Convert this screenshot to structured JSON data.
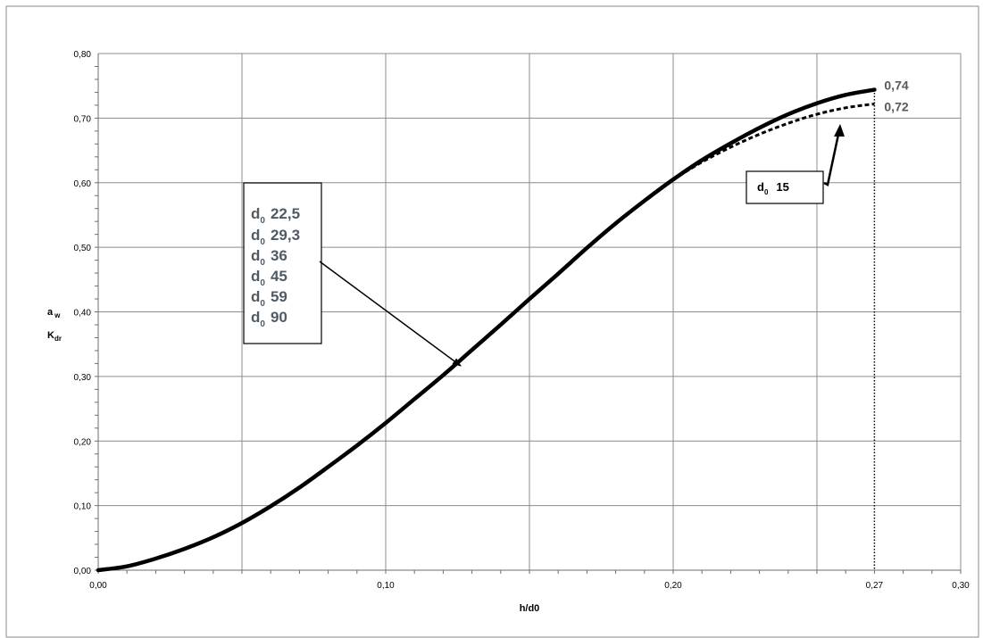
{
  "chart_data": {
    "type": "line",
    "xlabel": "h/d0",
    "ylabel_lines": [
      "a",
      "w",
      "K",
      "dr"
    ],
    "xlim": [
      0,
      0.3
    ],
    "ylim": [
      0,
      0.8
    ],
    "x_major_ticks": [
      0.0,
      0.1,
      0.2,
      0.3
    ],
    "x_minor_ticks": [
      0.05,
      0.15,
      0.25
    ],
    "x_extra_tick": 0.27,
    "x_tick_labels": [
      "0,00",
      "0,10",
      "0,20",
      "0,27",
      "0,30"
    ],
    "y_ticks": [
      0.0,
      0.1,
      0.2,
      0.3,
      0.4,
      0.5,
      0.6,
      0.7,
      0.8
    ],
    "y_tick_labels": [
      "0,00",
      "0,10",
      "0,20",
      "0,30",
      "0,40",
      "0,50",
      "0,60",
      "0,70",
      "0,80"
    ],
    "grid": true,
    "series": [
      {
        "style": "solid",
        "x": [
          0.0,
          0.01,
          0.02,
          0.03,
          0.04,
          0.05,
          0.06,
          0.07,
          0.08,
          0.09,
          0.1,
          0.11,
          0.12,
          0.13,
          0.14,
          0.15,
          0.16,
          0.17,
          0.18,
          0.19,
          0.2,
          0.21,
          0.22,
          0.23,
          0.24,
          0.25,
          0.26,
          0.27
        ],
        "y": [
          0.0,
          0.006,
          0.018,
          0.033,
          0.051,
          0.073,
          0.099,
          0.128,
          0.16,
          0.193,
          0.228,
          0.265,
          0.302,
          0.341,
          0.38,
          0.42,
          0.459,
          0.499,
          0.537,
          0.572,
          0.605,
          0.635,
          0.661,
          0.685,
          0.706,
          0.723,
          0.736,
          0.744
        ]
      },
      {
        "style": "dashed",
        "x": [
          0.2,
          0.21,
          0.22,
          0.23,
          0.24,
          0.25,
          0.26,
          0.27
        ],
        "y": [
          0.605,
          0.632,
          0.655,
          0.675,
          0.692,
          0.706,
          0.716,
          0.722
        ]
      }
    ],
    "end_labels": [
      {
        "text": "0,74",
        "x": 0.27,
        "y": 0.744
      },
      {
        "text": "0,72",
        "x": 0.27,
        "y": 0.722
      }
    ],
    "annotations": {
      "multi": {
        "lines": [
          {
            "base": "d",
            "sub": "0",
            "value": "22,5"
          },
          {
            "base": "d",
            "sub": "0",
            "value": "29,3"
          },
          {
            "base": "d",
            "sub": "0",
            "value": "36"
          },
          {
            "base": "d",
            "sub": "0",
            "value": "45"
          },
          {
            "base": "d",
            "sub": "0",
            "value": "59"
          },
          {
            "base": "d",
            "sub": "0",
            "value": "90"
          }
        ],
        "arrow_to": {
          "x": 0.126,
          "y": 0.31
        }
      },
      "single": {
        "line": {
          "base": "d",
          "sub": "0",
          "value": "15"
        },
        "arrow_to": {
          "x": 0.262,
          "y": 0.715
        }
      }
    }
  }
}
